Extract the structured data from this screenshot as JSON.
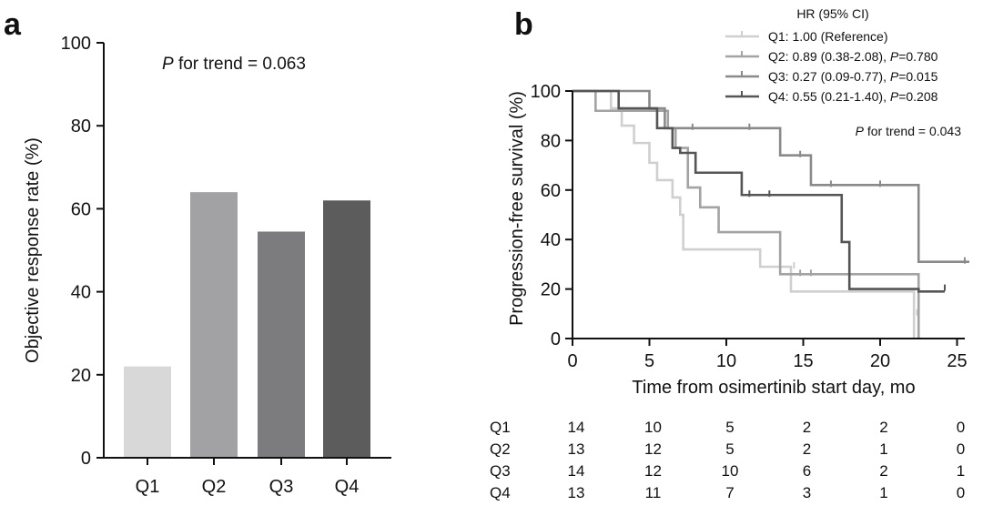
{
  "chart_data": [
    {
      "type": "bar",
      "panel_label": "a",
      "title": "",
      "categories": [
        "Q1",
        "Q2",
        "Q3",
        "Q4"
      ],
      "values": [
        22,
        64,
        54.5,
        62
      ],
      "colors": [
        "#d8d8d8",
        "#a2a2a4",
        "#7c7c7e",
        "#5c5c5c"
      ],
      "xlabel": "",
      "ylabel": "Objective response rate (%)",
      "ylim": [
        0,
        100
      ],
      "yticks": [
        0,
        20,
        40,
        60,
        80,
        100
      ],
      "annotation": {
        "italic": "P",
        "text": " for trend = 0.063"
      }
    },
    {
      "type": "line",
      "subtype": "kaplan-meier",
      "panel_label": "b",
      "xlabel": "Time from osimertinib start day, mo",
      "ylabel": "Progression-free survival (%)",
      "xlim": [
        0,
        26
      ],
      "ylim": [
        0,
        100
      ],
      "xticks": [
        0,
        5,
        10,
        15,
        20,
        25
      ],
      "yticks": [
        0,
        20,
        40,
        60,
        80,
        100
      ],
      "legend_title": "HR (95% CI)",
      "trend": {
        "italic": "P",
        "text": " for trend = 0.043"
      },
      "series": [
        {
          "name": "Q1",
          "color": "#cfcfcf",
          "legend": {
            "text": "Q1: 1.00 (Reference)",
            "italic_p": "",
            "p_value": ""
          },
          "x": [
            0,
            2.5,
            3.2,
            4,
            5,
            5.5,
            6.5,
            7,
            7.2,
            12.2,
            14.2,
            22.2
          ],
          "y": [
            100,
            93,
            86,
            79,
            71,
            64,
            57,
            50,
            36,
            29,
            19,
            0
          ],
          "censored": [
            [
              14.4,
              29
            ],
            [
              22.4,
              10
            ]
          ]
        },
        {
          "name": "Q2",
          "color": "#a3a3a3",
          "legend": {
            "text": "Q2: 0.89 (0.38-2.08), ",
            "italic_p": "P",
            "p_value": "=0.780"
          },
          "x": [
            0,
            1.5,
            6.2,
            6.7,
            7.5,
            8.3,
            9.5,
            13.5,
            22.5
          ],
          "y": [
            100,
            92,
            85,
            77,
            61,
            53,
            43,
            26,
            0
          ],
          "censored": [
            [
              14.8,
              26
            ],
            [
              15.5,
              26
            ]
          ]
        },
        {
          "name": "Q3",
          "color": "#8a8a8a",
          "legend": {
            "text": "Q3: 0.27 (0.09-0.77), ",
            "italic_p": "P",
            "p_value": "=0.015"
          },
          "x": [
            0,
            5,
            6,
            13.5,
            15.5,
            22.5,
            25.8
          ],
          "y": [
            100,
            93,
            85,
            74,
            62,
            31,
            31
          ],
          "censored": [
            [
              7.8,
              85
            ],
            [
              11.5,
              85
            ],
            [
              14.8,
              74
            ],
            [
              16.8,
              62
            ],
            [
              20,
              62
            ],
            [
              25.5,
              31
            ]
          ]
        },
        {
          "name": "Q4",
          "color": "#555555",
          "legend": {
            "text": "Q4: 0.55 (0.21-1.40), ",
            "italic_p": "P",
            "p_value": "=0.208"
          },
          "x": [
            0,
            3,
            5.5,
            6.5,
            7,
            8,
            11,
            17.5,
            18,
            22.5,
            24.2
          ],
          "y": [
            100,
            93,
            85,
            77,
            75,
            67,
            58,
            39,
            20,
            19,
            19
          ],
          "censored": [
            [
              11.5,
              58
            ],
            [
              12.8,
              58
            ],
            [
              24.2,
              20
            ]
          ]
        }
      ],
      "risk_table": {
        "times": [
          0,
          5,
          10,
          15,
          20,
          25
        ],
        "rows": [
          {
            "label": "Q1",
            "values": [
              14,
              10,
              5,
              2,
              2,
              0
            ]
          },
          {
            "label": "Q2",
            "values": [
              13,
              12,
              5,
              2,
              1,
              0
            ]
          },
          {
            "label": "Q3",
            "values": [
              14,
              12,
              10,
              6,
              2,
              1
            ]
          },
          {
            "label": "Q4",
            "values": [
              13,
              11,
              7,
              3,
              1,
              0
            ]
          }
        ]
      }
    }
  ]
}
